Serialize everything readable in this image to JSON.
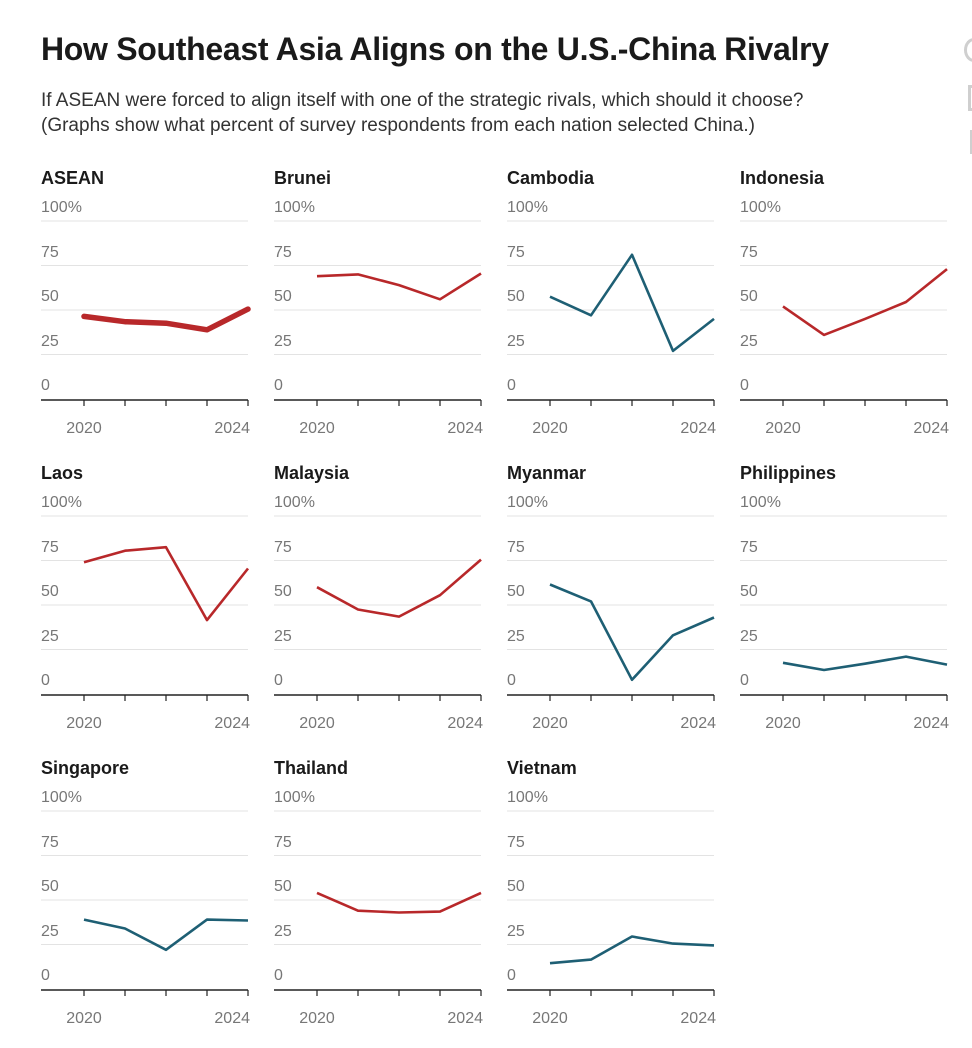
{
  "title": "How Southeast Asia Aligns on the U.S.-China Rivalry",
  "subtitle_lines": [
    "If ASEAN were forced to align itself with one of the strategic rivals, which should it choose?",
    "(Graphs show what percent of survey respondents from each nation selected China.)"
  ],
  "colors": {
    "above": "#b8282a",
    "below": "#1e5f74",
    "grid": "#e3e3e3",
    "axis": "#222222",
    "tick_text": "#777777"
  },
  "chart_data": [
    {
      "type": "line",
      "title": "ASEAN",
      "x": [
        2020,
        2021,
        2022,
        2023,
        2024
      ],
      "values": [
        46.4,
        43.4,
        42.6,
        38.9,
        50.5
      ],
      "color": "#b8282a",
      "emphasis": true,
      "ylim": [
        0,
        100
      ],
      "yticks": [
        "100%",
        "75",
        "50",
        "25",
        "0"
      ],
      "xticks": [
        "2020",
        "2024"
      ],
      "grid": true
    },
    {
      "type": "line",
      "title": "Brunei",
      "x": [
        2020,
        2021,
        2022,
        2023,
        2024
      ],
      "values": [
        69,
        70,
        64,
        56,
        70.5
      ],
      "color": "#b8282a",
      "ylim": [
        0,
        100
      ],
      "yticks": [
        "100%",
        "75",
        "50",
        "25",
        "0"
      ],
      "xticks": [
        "2020",
        "2024"
      ],
      "grid": true
    },
    {
      "type": "line",
      "title": "Cambodia",
      "x": [
        2020,
        2021,
        2022,
        2023,
        2024
      ],
      "values": [
        57.5,
        47,
        81,
        27,
        45
      ],
      "color": "#1e5f74",
      "ylim": [
        0,
        100
      ],
      "yticks": [
        "100%",
        "75",
        "50",
        "25",
        "0"
      ],
      "xticks": [
        "2020",
        "2024"
      ],
      "grid": true
    },
    {
      "type": "line",
      "title": "Indonesia",
      "x": [
        2020,
        2021,
        2022,
        2023,
        2024
      ],
      "values": [
        52,
        36,
        45,
        54.5,
        73
      ],
      "color": "#b8282a",
      "ylim": [
        0,
        100
      ],
      "yticks": [
        "100%",
        "75",
        "50",
        "25",
        "0"
      ],
      "xticks": [
        "2020",
        "2024"
      ],
      "grid": true
    },
    {
      "type": "line",
      "title": "Laos",
      "x": [
        2020,
        2021,
        2022,
        2023,
        2024
      ],
      "values": [
        74,
        80.5,
        82.5,
        41.5,
        70.5
      ],
      "color": "#b8282a",
      "ylim": [
        0,
        100
      ],
      "yticks": [
        "100%",
        "75",
        "50",
        "25",
        "0"
      ],
      "xticks": [
        "2020",
        "2024"
      ],
      "grid": true
    },
    {
      "type": "line",
      "title": "Malaysia",
      "x": [
        2020,
        2021,
        2022,
        2023,
        2024
      ],
      "values": [
        60,
        47.5,
        43.5,
        55.5,
        75.5
      ],
      "color": "#b8282a",
      "ylim": [
        0,
        100
      ],
      "yticks": [
        "100%",
        "75",
        "50",
        "25",
        "0"
      ],
      "xticks": [
        "2020",
        "2024"
      ],
      "grid": true
    },
    {
      "type": "line",
      "title": "Myanmar",
      "x": [
        2020,
        2021,
        2022,
        2023,
        2024
      ],
      "values": [
        61.5,
        52,
        8,
        33,
        43
      ],
      "color": "#1e5f74",
      "ylim": [
        0,
        100
      ],
      "yticks": [
        "100%",
        "75",
        "50",
        "25",
        "0"
      ],
      "xticks": [
        "2020",
        "2024"
      ],
      "grid": true
    },
    {
      "type": "line",
      "title": "Philippines",
      "x": [
        2020,
        2021,
        2022,
        2023,
        2024
      ],
      "values": [
        17.5,
        13.5,
        17,
        21,
        16.5
      ],
      "color": "#1e5f74",
      "ylim": [
        0,
        100
      ],
      "yticks": [
        "100%",
        "75",
        "50",
        "25",
        "0"
      ],
      "xticks": [
        "2020",
        "2024"
      ],
      "grid": true
    },
    {
      "type": "line",
      "title": "Singapore",
      "x": [
        2020,
        2021,
        2022,
        2023,
        2024
      ],
      "values": [
        39,
        34,
        22,
        39,
        38.5
      ],
      "color": "#1e5f74",
      "ylim": [
        0,
        100
      ],
      "yticks": [
        "100%",
        "75",
        "50",
        "25",
        "0"
      ],
      "xticks": [
        "2020",
        "2024"
      ],
      "grid": true
    },
    {
      "type": "line",
      "title": "Thailand",
      "x": [
        2020,
        2021,
        2022,
        2023,
        2024
      ],
      "values": [
        54,
        44,
        43,
        43.5,
        54
      ],
      "color": "#b8282a",
      "ylim": [
        0,
        100
      ],
      "yticks": [
        "100%",
        "75",
        "50",
        "25",
        "0"
      ],
      "xticks": [
        "2020",
        "2024"
      ],
      "grid": true
    },
    {
      "type": "line",
      "title": "Vietnam",
      "x": [
        2020,
        2021,
        2022,
        2023,
        2024
      ],
      "values": [
        14.5,
        16.5,
        29.5,
        25.5,
        24.5
      ],
      "color": "#1e5f74",
      "ylim": [
        0,
        100
      ],
      "yticks": [
        "100%",
        "75",
        "50",
        "25",
        "0"
      ],
      "xticks": [
        "2020",
        "2024"
      ],
      "grid": true
    }
  ]
}
